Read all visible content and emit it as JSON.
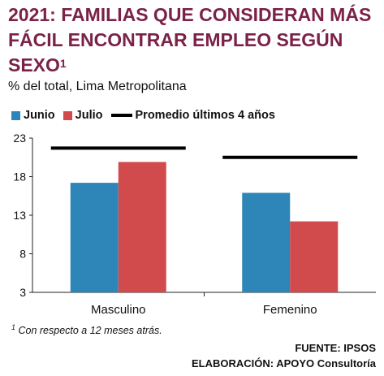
{
  "header": {
    "title": "2021: FAMILIAS QUE CONSIDERAN MÁS FÁCIL ENCONTRAR EMPLEO SEGÚN SEXO",
    "title_sup": "1",
    "subtitle": "% del total, Lima Metropolitana"
  },
  "legend": {
    "junio": "Junio",
    "julio": "Julio",
    "promedio": "Promedio últimos 4 años"
  },
  "footnote": {
    "sup": "1",
    "text": " Con respecto a 12  meses atrás."
  },
  "source": {
    "fuente": "FUENTE: IPSOS",
    "elaboracion": "ELABORACIÓN: APOYO Consultoría"
  },
  "colors": {
    "junio": "#2e86b8",
    "julio": "#d14b4d",
    "promedio": "#000000",
    "title": "#7b2249"
  },
  "chart_data": {
    "type": "bar",
    "categories": [
      "Masculino",
      "Femenino"
    ],
    "series": [
      {
        "name": "Junio",
        "values": [
          17.2,
          15.9
        ]
      },
      {
        "name": "Julio",
        "values": [
          19.9,
          12.2
        ]
      }
    ],
    "reference_lines": {
      "name": "Promedio últimos 4 años",
      "values": [
        21.7,
        20.5
      ]
    },
    "ylim": [
      3,
      23
    ],
    "yticks": [
      3,
      8,
      13,
      18,
      23
    ],
    "ytick_labels": [
      "3",
      "8",
      "13",
      "18",
      "23"
    ],
    "grid": false,
    "legend_position": "top"
  }
}
